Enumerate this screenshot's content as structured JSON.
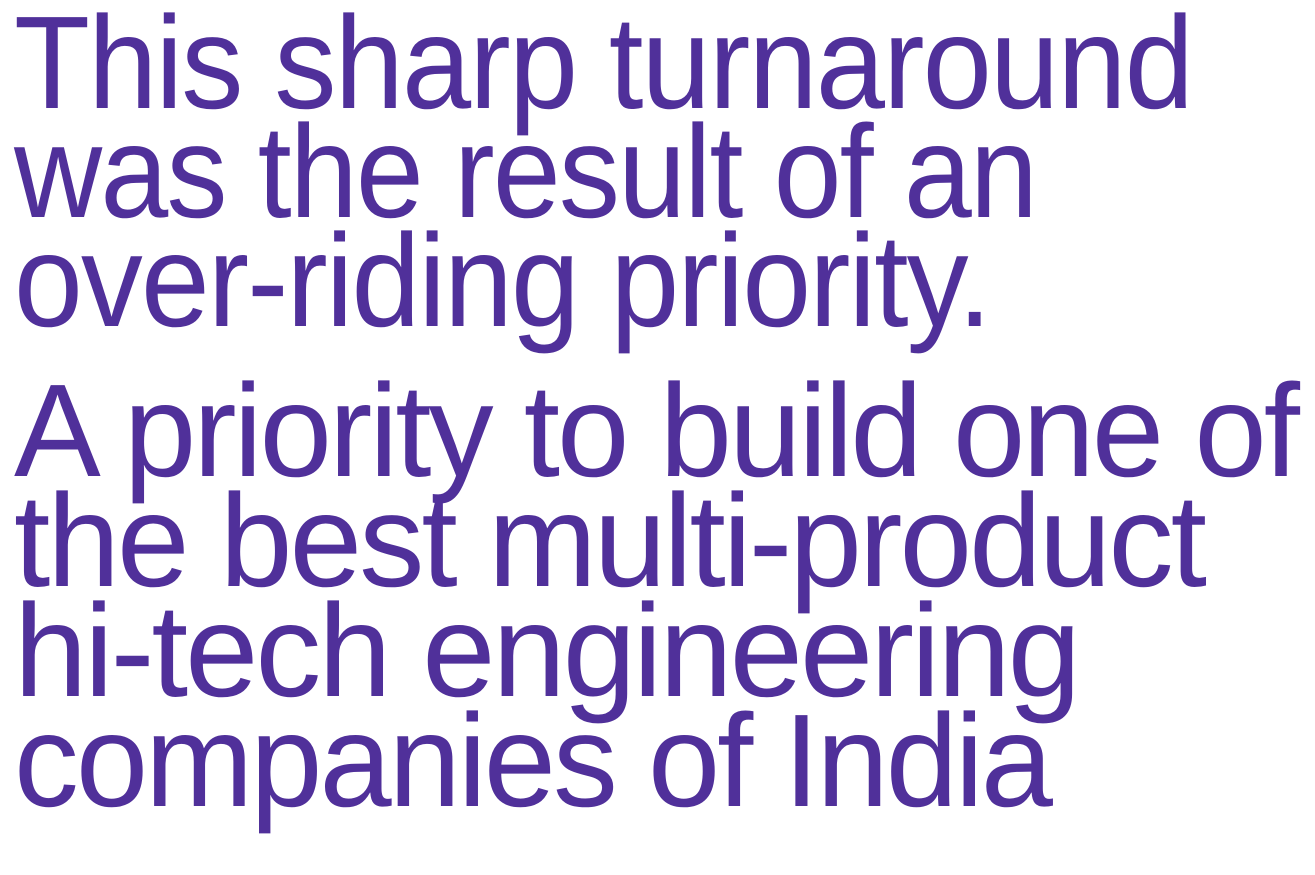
{
  "paragraphs": [
    {
      "lines": [
        "This sharp turnaround",
        "was the result of an",
        "over-riding priority."
      ]
    },
    {
      "lines": [
        "A priority to build one of",
        "the best multi-product",
        "hi-tech engineering",
        "companies of India"
      ]
    }
  ]
}
